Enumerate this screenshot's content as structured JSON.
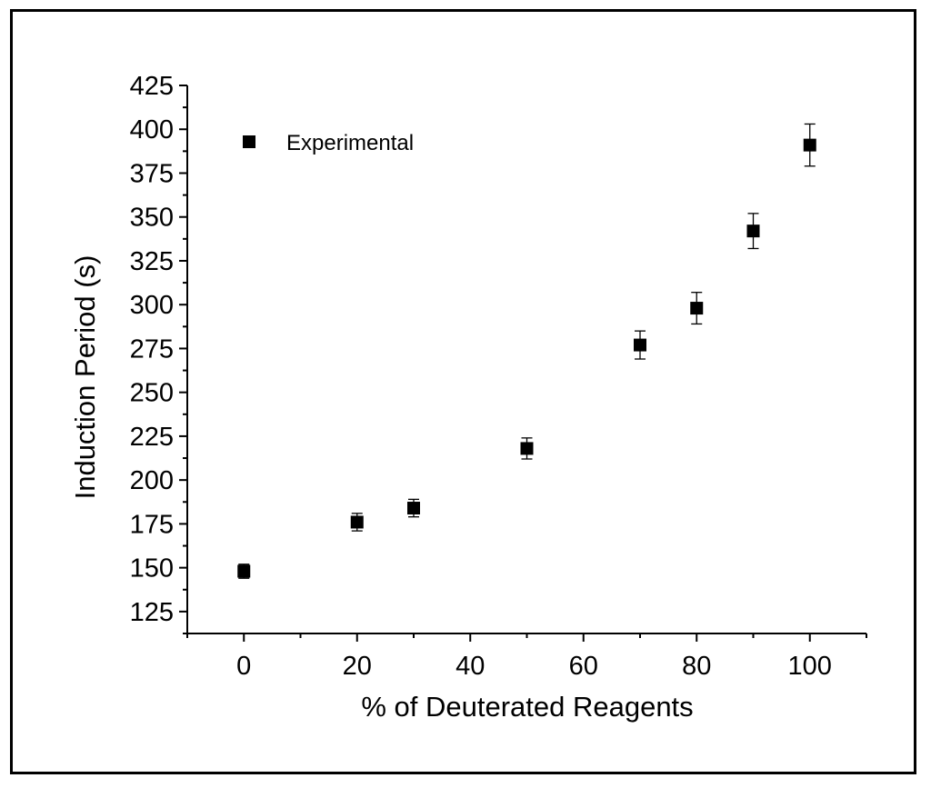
{
  "chart_data": {
    "type": "scatter",
    "title": "",
    "xlabel": "% of Deuterated Reagents",
    "ylabel": "Induction Period (s)",
    "xlim": [
      -10,
      110
    ],
    "ylim": [
      112.5,
      425
    ],
    "x_major_ticks": [
      0,
      20,
      40,
      60,
      80,
      100
    ],
    "x_minor_step": 10,
    "y_major_ticks": [
      125,
      150,
      175,
      200,
      225,
      250,
      275,
      300,
      325,
      350,
      375,
      400,
      425
    ],
    "y_minor_step": 12.5,
    "grid": false,
    "legend_position": "top-left",
    "series": [
      {
        "name": "Experimental",
        "marker": "square",
        "color": "#000000",
        "points": [
          {
            "x": 0,
            "y": 148,
            "err": 4
          },
          {
            "x": 20,
            "y": 176,
            "err": 5
          },
          {
            "x": 30,
            "y": 184,
            "err": 5
          },
          {
            "x": 50,
            "y": 218,
            "err": 6
          },
          {
            "x": 70,
            "y": 277,
            "err": 8
          },
          {
            "x": 80,
            "y": 298,
            "err": 9
          },
          {
            "x": 90,
            "y": 342,
            "err": 10
          },
          {
            "x": 100,
            "y": 391,
            "err": 12
          }
        ]
      }
    ]
  }
}
